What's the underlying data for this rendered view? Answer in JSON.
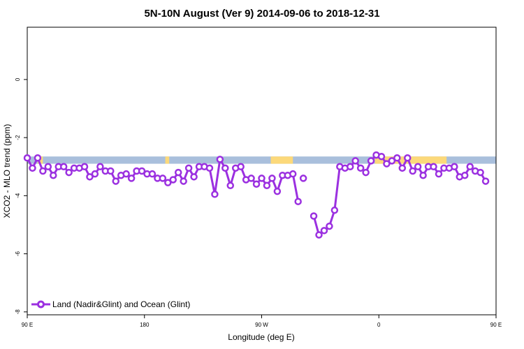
{
  "chart_data": {
    "type": "line",
    "title": "5N-10N August (Ver 9)   2014-09-06 to 2018-12-31",
    "xlabel": "Longitude (deg E)",
    "ylabel": "XCO2 - MLO trend (ppm)",
    "xlim": [
      90,
      450
    ],
    "ylim": [
      -8.1,
      1.8
    ],
    "x_ticks": [
      {
        "value": 90,
        "label": "90 E"
      },
      {
        "value": 180,
        "label": "180"
      },
      {
        "value": 270,
        "label": "90 W"
      },
      {
        "value": 360,
        "label": "0"
      },
      {
        "value": 450,
        "label": "90 E"
      },
      {
        "value": 540,
        "label": "180"
      }
    ],
    "y_ticks": [
      {
        "value": 0,
        "label": "0"
      },
      {
        "value": -2,
        "label": "-2"
      },
      {
        "value": -4,
        "label": "-4"
      },
      {
        "value": -6,
        "label": "-6"
      },
      {
        "value": -8,
        "label": "-8"
      }
    ],
    "band": {
      "y_from": -2.65,
      "y_to": -2.9,
      "ocean_color": "#a9bfdc",
      "land_color": "#fcd97a"
    },
    "land_spans": [
      [
        98,
        102
      ],
      [
        196,
        199
      ],
      [
        277,
        294
      ],
      [
        357,
        412
      ],
      [
        485,
        487
      ]
    ],
    "series": [
      {
        "name": "Land (Nadir&Glint) and Ocean (Glint)",
        "color": "#9b30e0",
        "segments": [
          [
            [
              90,
              -2.7
            ],
            [
              94,
              -3.05
            ],
            [
              98,
              -2.7
            ],
            [
              102,
              -3.15
            ],
            [
              106,
              -3.0
            ],
            [
              110,
              -3.3
            ],
            [
              114,
              -3.0
            ],
            [
              118,
              -3.0
            ],
            [
              122,
              -3.2
            ],
            [
              126,
              -3.05
            ],
            [
              130,
              -3.05
            ],
            [
              134,
              -3.0
            ],
            [
              138,
              -3.35
            ],
            [
              142,
              -3.25
            ],
            [
              146,
              -3.0
            ],
            [
              150,
              -3.15
            ],
            [
              154,
              -3.15
            ],
            [
              158,
              -3.5
            ],
            [
              162,
              -3.3
            ],
            [
              166,
              -3.25
            ],
            [
              170,
              -3.4
            ],
            [
              174,
              -3.15
            ],
            [
              178,
              -3.15
            ],
            [
              182,
              -3.25
            ],
            [
              186,
              -3.25
            ],
            [
              190,
              -3.4
            ],
            [
              194,
              -3.4
            ],
            [
              198,
              -3.55
            ],
            [
              202,
              -3.45
            ],
            [
              206,
              -3.2
            ],
            [
              210,
              -3.5
            ],
            [
              214,
              -3.05
            ],
            [
              218,
              -3.35
            ],
            [
              222,
              -3.0
            ],
            [
              226,
              -3.0
            ],
            [
              230,
              -3.05
            ],
            [
              234,
              -3.95
            ],
            [
              238,
              -2.75
            ],
            [
              242,
              -3.05
            ],
            [
              246,
              -3.65
            ],
            [
              250,
              -3.05
            ],
            [
              254,
              -3.0
            ],
            [
              258,
              -3.45
            ],
            [
              262,
              -3.4
            ],
            [
              266,
              -3.6
            ],
            [
              270,
              -3.4
            ],
            [
              274,
              -3.65
            ],
            [
              278,
              -3.4
            ],
            [
              282,
              -3.85
            ],
            [
              286,
              -3.3
            ],
            [
              290,
              -3.3
            ],
            [
              294,
              -3.25
            ],
            [
              298,
              -4.2
            ]
          ],
          [
            [
              302,
              -3.4
            ]
          ],
          [
            [
              310,
              -4.7
            ],
            [
              314,
              -5.35
            ],
            [
              318,
              -5.2
            ],
            [
              322,
              -5.05
            ],
            [
              326,
              -4.5
            ],
            [
              330,
              -3.0
            ],
            [
              334,
              -3.05
            ],
            [
              338,
              -3.0
            ],
            [
              342,
              -2.8
            ],
            [
              346,
              -3.05
            ],
            [
              350,
              -3.2
            ],
            [
              354,
              -2.8
            ],
            [
              358,
              -2.6
            ],
            [
              362,
              -2.65
            ],
            [
              366,
              -2.9
            ],
            [
              370,
              -2.8
            ],
            [
              374,
              -2.7
            ],
            [
              378,
              -3.05
            ],
            [
              382,
              -2.7
            ],
            [
              386,
              -3.15
            ],
            [
              390,
              -3.0
            ],
            [
              394,
              -3.3
            ],
            [
              398,
              -3.0
            ],
            [
              402,
              -3.0
            ],
            [
              406,
              -3.25
            ],
            [
              410,
              -3.05
            ],
            [
              414,
              -3.05
            ],
            [
              418,
              -3.0
            ],
            [
              422,
              -3.35
            ],
            [
              426,
              -3.3
            ],
            [
              430,
              -3.0
            ],
            [
              434,
              -3.15
            ],
            [
              438,
              -3.2
            ],
            [
              442,
              -3.5
            ]
          ]
        ]
      }
    ],
    "legend": {
      "position": "bottom-left",
      "label": "Land (Nadir&Glint) and Ocean (Glint)"
    }
  }
}
